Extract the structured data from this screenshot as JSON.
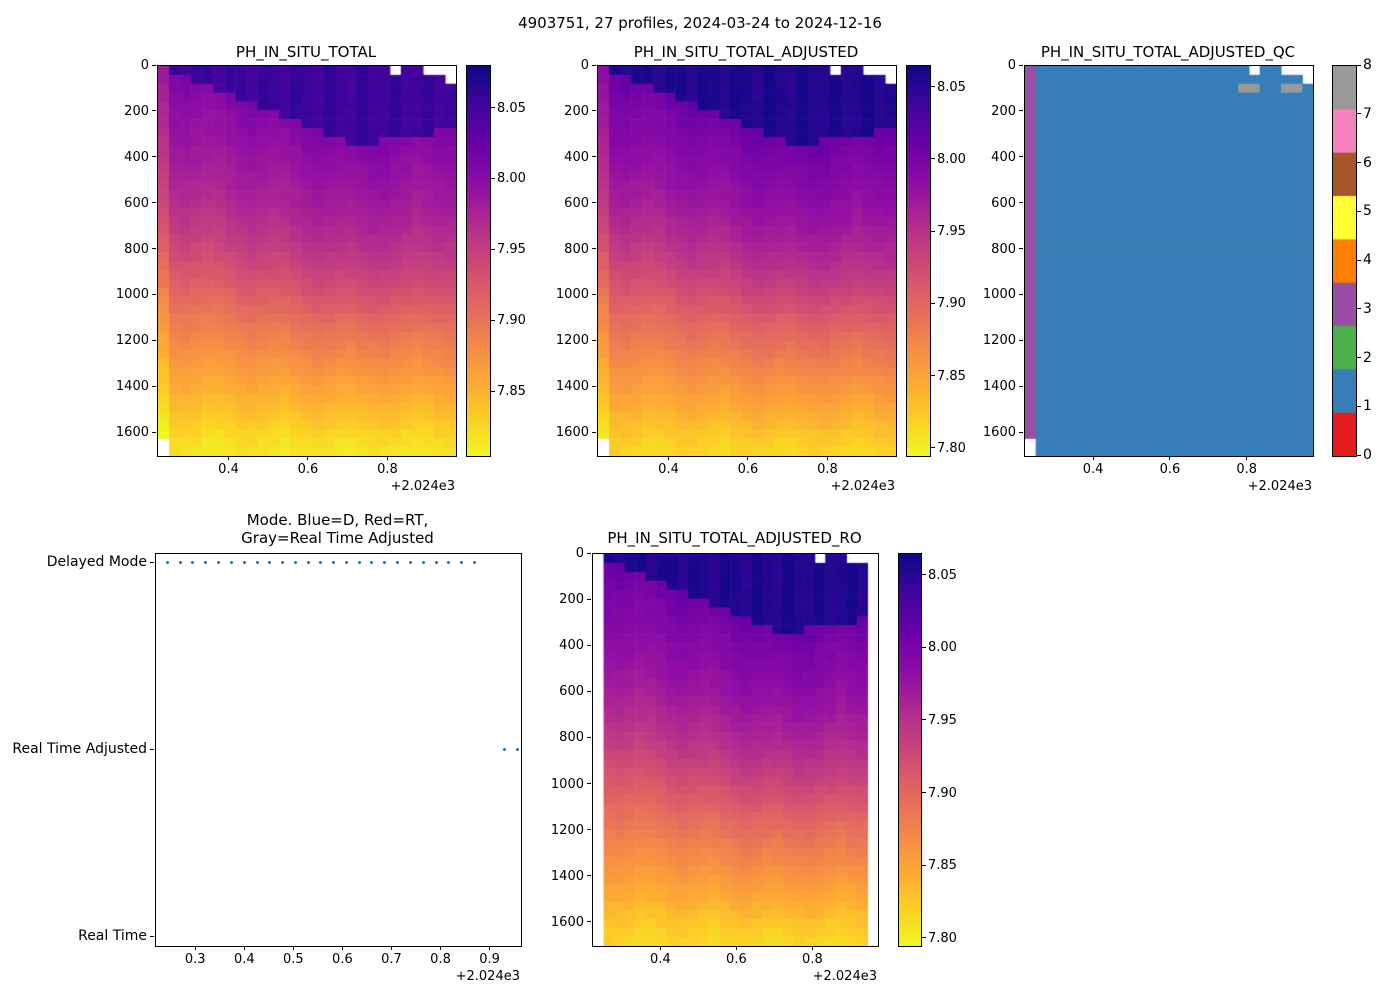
{
  "figure": {
    "suptitle": "4903751, 27 profiles, 2024-03-24 to 2024-12-16"
  },
  "colors": {
    "plasma_stops": [
      "#0d0887",
      "#41049d",
      "#6a00a8",
      "#8f0da4",
      "#b12a90",
      "#cc4778",
      "#e16462",
      "#f2844b",
      "#fca636",
      "#fcce25",
      "#f0f921"
    ],
    "qc_palette": [
      "#e41a1c",
      "#377eb8",
      "#4daf4a",
      "#984ea3",
      "#ff7f00",
      "#ffff33",
      "#a65628",
      "#f781bf",
      "#999999"
    ],
    "marker_blue": "#1f77b4",
    "background": "#ffffff",
    "text": "#000000"
  },
  "chart_data": [
    {
      "name": "ph_in_situ_total",
      "type": "heatmap",
      "title": "PH_IN_SITU_TOTAL",
      "xlim": [
        2024.22,
        2024.97
      ],
      "xticks": [
        2024.4,
        2024.6,
        2024.8
      ],
      "xtick_labels": [
        "0.4",
        "0.6",
        "0.8"
      ],
      "x_offset_label": "+2.024e3",
      "ylim": [
        1700,
        0
      ],
      "yticks": [
        0,
        200,
        400,
        600,
        800,
        1000,
        1200,
        1400,
        1600
      ],
      "n_profiles": 27,
      "depth_max_m": 1700,
      "surface_ph": 8.055,
      "mixed_layer_depth_m": [
        0,
        35,
        50,
        65,
        85,
        105,
        125,
        145,
        165,
        185,
        205,
        225,
        245,
        265,
        285,
        305,
        320,
        335,
        350,
        340,
        315,
        300,
        320,
        295,
        305,
        285,
        265
      ],
      "depth_profile": {
        "depth_m": [
          0,
          100,
          200,
          300,
          400,
          500,
          600,
          700,
          800,
          900,
          1000,
          1100,
          1200,
          1300,
          1400,
          1500,
          1600,
          1700
        ],
        "ph": [
          8.01,
          8.0,
          7.993,
          7.987,
          7.98,
          7.971,
          7.961,
          7.95,
          7.937,
          7.922,
          7.907,
          7.893,
          7.88,
          7.867,
          7.853,
          7.84,
          7.826,
          7.815
        ]
      },
      "missing_surface_cells": [
        {
          "col": 21,
          "bins": 1
        },
        {
          "col": 24,
          "bins": 1
        },
        {
          "col": 25,
          "bins": 1
        },
        {
          "col": 26,
          "bins": 2
        }
      ],
      "missing_bottom": [
        {
          "col": 0,
          "below_m": 1600
        }
      ],
      "colorbar": {
        "vmin": 7.805,
        "vmax": 8.08,
        "tick_values": [
          8.05,
          8.0,
          7.95,
          7.9,
          7.85
        ],
        "tick_labels": [
          "8.05",
          "8.00",
          "7.95",
          "7.90",
          "7.85"
        ]
      }
    },
    {
      "name": "ph_in_situ_total_adjusted",
      "type": "heatmap",
      "title": "PH_IN_SITU_TOTAL_ADJUSTED",
      "xlim": [
        2024.22,
        2024.97
      ],
      "xticks": [
        2024.4,
        2024.6,
        2024.8
      ],
      "xtick_labels": [
        "0.4",
        "0.6",
        "0.8"
      ],
      "x_offset_label": "+2.024e3",
      "ylim": [
        1700,
        0
      ],
      "yticks": [
        0,
        200,
        400,
        600,
        800,
        1000,
        1200,
        1400,
        1600
      ],
      "n_profiles": 27,
      "depth_max_m": 1700,
      "surface_ph": 8.055,
      "mixed_layer_depth_m": [
        0,
        35,
        50,
        65,
        85,
        105,
        125,
        145,
        165,
        185,
        205,
        225,
        245,
        265,
        285,
        305,
        320,
        335,
        350,
        340,
        315,
        300,
        320,
        295,
        305,
        285,
        265
      ],
      "depth_profile": {
        "depth_m": [
          0,
          100,
          200,
          300,
          400,
          500,
          600,
          700,
          800,
          900,
          1000,
          1100,
          1200,
          1300,
          1400,
          1500,
          1600,
          1700
        ],
        "ph": [
          8.01,
          8.0,
          7.993,
          7.987,
          7.98,
          7.971,
          7.961,
          7.95,
          7.937,
          7.922,
          7.907,
          7.893,
          7.88,
          7.867,
          7.853,
          7.84,
          7.826,
          7.815
        ]
      },
      "missing_surface_cells": [
        {
          "col": 21,
          "bins": 1
        },
        {
          "col": 24,
          "bins": 1
        },
        {
          "col": 25,
          "bins": 1
        },
        {
          "col": 26,
          "bins": 2
        }
      ],
      "missing_bottom": [
        {
          "col": 0,
          "below_m": 1600
        }
      ],
      "colorbar": {
        "vmin": 7.795,
        "vmax": 8.065,
        "tick_values": [
          8.05,
          8.0,
          7.95,
          7.9,
          7.85,
          7.8
        ],
        "tick_labels": [
          "8.05",
          "8.00",
          "7.95",
          "7.90",
          "7.85",
          "7.80"
        ]
      }
    },
    {
      "name": "ph_in_situ_total_adjusted_qc",
      "type": "heatmap",
      "is_qc": true,
      "title": "PH_IN_SITU_TOTAL_ADJUSTED_QC",
      "xlim": [
        2024.22,
        2024.97
      ],
      "xticks": [
        2024.4,
        2024.6,
        2024.8
      ],
      "xtick_labels": [
        "0.4",
        "0.6",
        "0.8"
      ],
      "x_offset_label": "+2.024e3",
      "ylim": [
        1700,
        0
      ],
      "yticks": [
        0,
        200,
        400,
        600,
        800,
        1000,
        1200,
        1400,
        1600
      ],
      "n_profiles": 27,
      "depth_max_m": 1700,
      "column_qc": [
        3,
        1,
        1,
        1,
        1,
        1,
        1,
        1,
        1,
        1,
        1,
        1,
        1,
        1,
        1,
        1,
        1,
        1,
        1,
        1,
        1,
        1,
        1,
        1,
        1,
        1,
        1
      ],
      "qc8_cells": [
        [
          20,
          2
        ],
        [
          21,
          2
        ],
        [
          24,
          2
        ],
        [
          25,
          2
        ]
      ],
      "missing_surface_cells": [
        {
          "col": 21,
          "bins": 1
        },
        {
          "col": 24,
          "bins": 1
        },
        {
          "col": 25,
          "bins": 1
        },
        {
          "col": 26,
          "bins": 2
        }
      ],
      "missing_bottom": [
        {
          "col": 0,
          "below_m": 1600
        }
      ],
      "qc_colorbar": {
        "values": [
          0,
          1,
          2,
          3,
          4,
          5,
          6,
          7,
          8
        ],
        "tick_labels": [
          "0",
          "1",
          "2",
          "3",
          "4",
          "5",
          "6",
          "7",
          "8"
        ]
      }
    },
    {
      "name": "mode",
      "type": "scatter",
      "title_lines": [
        "Mode. Blue=D, Red=RT,",
        "Gray=Real Time Adjusted"
      ],
      "categories": [
        "Real Time",
        "Real Time Adjusted",
        "Delayed Mode"
      ],
      "xlim": [
        2024.218,
        2024.962
      ],
      "xticks": [
        2024.3,
        2024.4,
        2024.5,
        2024.6,
        2024.7,
        2024.8,
        2024.9
      ],
      "xtick_labels": [
        "0.3",
        "0.4",
        "0.5",
        "0.6",
        "0.7",
        "0.8",
        "0.9"
      ],
      "x_offset_label": "+2.024e3",
      "marker_color": "#1f77b4",
      "points": {
        "x": [
          2024.243,
          2024.269,
          2024.295,
          2024.321,
          2024.347,
          2024.373,
          2024.4,
          2024.426,
          2024.452,
          2024.478,
          2024.504,
          2024.53,
          2024.556,
          2024.582,
          2024.608,
          2024.634,
          2024.66,
          2024.686,
          2024.712,
          2024.738,
          2024.765,
          2024.791,
          2024.817,
          2024.843,
          2024.869,
          2024.93,
          2024.956
        ],
        "mode": [
          "Delayed Mode",
          "Delayed Mode",
          "Delayed Mode",
          "Delayed Mode",
          "Delayed Mode",
          "Delayed Mode",
          "Delayed Mode",
          "Delayed Mode",
          "Delayed Mode",
          "Delayed Mode",
          "Delayed Mode",
          "Delayed Mode",
          "Delayed Mode",
          "Delayed Mode",
          "Delayed Mode",
          "Delayed Mode",
          "Delayed Mode",
          "Delayed Mode",
          "Delayed Mode",
          "Delayed Mode",
          "Delayed Mode",
          "Delayed Mode",
          "Delayed Mode",
          "Delayed Mode",
          "Delayed Mode",
          "Real Time Adjusted",
          "Real Time Adjusted"
        ]
      }
    },
    {
      "name": "ph_in_situ_total_adjusted_ro",
      "type": "heatmap",
      "title": "PH_IN_SITU_TOTAL_ADJUSTED_RO",
      "xlim": [
        2024.22,
        2024.97
      ],
      "xticks": [
        2024.4,
        2024.6,
        2024.8
      ],
      "xtick_labels": [
        "0.4",
        "0.6",
        "0.8"
      ],
      "x_offset_label": "+2.024e3",
      "ylim": [
        1700,
        0
      ],
      "yticks": [
        0,
        200,
        400,
        600,
        800,
        1000,
        1200,
        1400,
        1600
      ],
      "n_profiles": 27,
      "depth_max_m": 1700,
      "surface_ph": 8.055,
      "mixed_layer_depth_m": [
        0,
        35,
        50,
        65,
        85,
        105,
        125,
        145,
        165,
        185,
        205,
        225,
        245,
        265,
        285,
        305,
        320,
        335,
        350,
        340,
        315,
        300,
        320,
        295,
        305,
        285,
        265
      ],
      "depth_profile": {
        "depth_m": [
          0,
          100,
          200,
          300,
          400,
          500,
          600,
          700,
          800,
          900,
          1000,
          1100,
          1200,
          1300,
          1400,
          1500,
          1600,
          1700
        ],
        "ph": [
          8.01,
          8.0,
          7.993,
          7.987,
          7.98,
          7.971,
          7.961,
          7.95,
          7.937,
          7.922,
          7.907,
          7.893,
          7.88,
          7.867,
          7.853,
          7.84,
          7.826,
          7.815
        ]
      },
      "excluded_columns": [
        0,
        26
      ],
      "missing_surface_cells": [
        {
          "col": 21,
          "bins": 1
        },
        {
          "col": 24,
          "bins": 1
        },
        {
          "col": 25,
          "bins": 1
        }
      ],
      "missing_bottom": [],
      "colorbar": {
        "vmin": 7.795,
        "vmax": 8.065,
        "tick_values": [
          8.05,
          8.0,
          7.95,
          7.9,
          7.85,
          7.8
        ],
        "tick_labels": [
          "8.05",
          "8.00",
          "7.95",
          "7.90",
          "7.85",
          "7.80"
        ]
      }
    }
  ]
}
